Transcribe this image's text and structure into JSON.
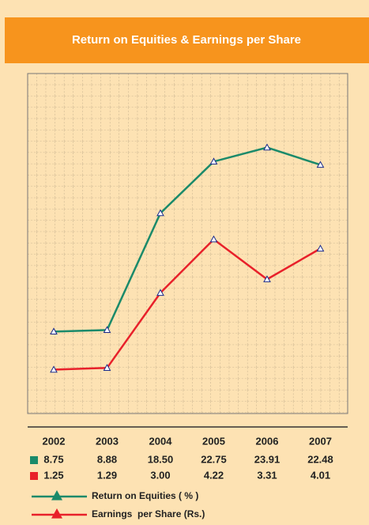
{
  "chart_data": {
    "type": "line",
    "title": "Return on Equities & Earnings per Share",
    "categories": [
      "2002",
      "2003",
      "2004",
      "2005",
      "2006",
      "2007"
    ],
    "series": [
      {
        "name": "Return on Equities ( % )",
        "color": "#1a8a6a",
        "values": [
          8.75,
          8.88,
          18.5,
          22.75,
          23.91,
          22.48
        ],
        "value_labels": [
          "8.75",
          "8.88",
          "18.50",
          "22.75",
          "23.91",
          "22.48"
        ]
      },
      {
        "name": "Earnings  per Share (Rs.)",
        "color": "#e8202a",
        "axis": "y2",
        "values": [
          1.25,
          1.29,
          3.0,
          4.22,
          3.31,
          4.01
        ],
        "value_labels": [
          "1.25",
          "1.29",
          "3.00",
          "4.22",
          "3.31",
          "4.01"
        ]
      }
    ],
    "ylim": [
      2,
      30
    ],
    "y2lim": [
      0.25,
      8
    ],
    "grid": true
  }
}
